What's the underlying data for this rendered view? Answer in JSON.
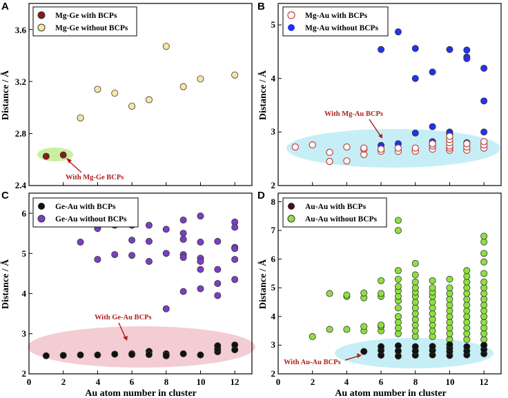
{
  "figure": {
    "colors": {
      "dark_red": "#8b1a1a",
      "light_yellow": "#f7e7a0",
      "blue": "#2233ee",
      "purple": "#7a3fc4",
      "black": "#111111",
      "light_green": "#8ee040",
      "annotation_red": "#b02020",
      "ellipse_green": "#c8f0a0",
      "ellipse_cyan": "#c6eef6",
      "ellipse_pink": "#f3cdd3"
    }
  },
  "chart_data": [
    {
      "panel": "A",
      "type": "scatter",
      "xlabel": "",
      "ylabel": "Distance / Å",
      "xlim": [
        0,
        13
      ],
      "ylim": [
        2.4,
        3.8
      ],
      "yticks": [
        "2.4",
        "2.8",
        "3.2",
        "3.6"
      ],
      "legend": "top-left",
      "series": [
        {
          "name": "Mg-Ge  with BCPs",
          "style": "filled",
          "color": "#8b1a1a",
          "points": [
            [
              1,
              2.625
            ],
            [
              2,
              2.635
            ]
          ]
        },
        {
          "name": "Mg-Ge without BCPs",
          "style": "filled",
          "color": "#f7e7a0",
          "points": [
            [
              3,
              2.92
            ],
            [
              4,
              3.14
            ],
            [
              5,
              3.11
            ],
            [
              6,
              3.01
            ],
            [
              7,
              3.06
            ],
            [
              8,
              3.47
            ],
            [
              9,
              3.16
            ],
            [
              10,
              3.22
            ],
            [
              12,
              3.25
            ]
          ]
        }
      ],
      "annotation": {
        "text": "With Mg-Ge BCPs",
        "x": 3.5,
        "y": 2.48
      }
    },
    {
      "panel": "B",
      "type": "scatter",
      "xlabel": "",
      "ylabel": "Distance / Å",
      "xlim": [
        0,
        13
      ],
      "ylim": [
        2,
        5.4
      ],
      "yticks": [
        "2",
        "3",
        "4",
        "5"
      ],
      "legend": "top-left",
      "series": [
        {
          "name": "Mg-Au  with BCPs",
          "style": "hollow",
          "color": "#c04040",
          "points": [
            [
              1,
              2.72
            ],
            [
              2,
              2.76
            ],
            [
              3,
              2.45
            ],
            [
              3,
              2.62
            ],
            [
              4,
              2.46
            ],
            [
              4,
              2.72
            ],
            [
              5,
              2.58
            ],
            [
              5,
              2.68
            ],
            [
              5,
              2.7
            ],
            [
              6,
              2.64
            ],
            [
              6,
              2.68
            ],
            [
              7,
              2.64
            ],
            [
              7,
              2.7
            ],
            [
              8,
              2.64
            ],
            [
              8,
              2.7
            ],
            [
              9,
              2.68
            ],
            [
              9,
              2.74
            ],
            [
              9,
              2.78
            ],
            [
              10,
              2.66
            ],
            [
              10,
              2.7
            ],
            [
              10,
              2.74
            ],
            [
              10,
              2.8
            ],
            [
              10,
              2.86
            ],
            [
              10,
              2.92
            ],
            [
              11,
              2.66
            ],
            [
              11,
              2.72
            ],
            [
              11,
              2.78
            ],
            [
              12,
              2.7
            ],
            [
              12,
              2.76
            ],
            [
              12,
              2.82
            ]
          ]
        },
        {
          "name": "Mg-Au without BCPs",
          "style": "filled",
          "color": "#2233ee",
          "points": [
            [
              6,
              4.54
            ],
            [
              6,
              2.75
            ],
            [
              7,
              4.87
            ],
            [
              7,
              2.78
            ],
            [
              8,
              4.56
            ],
            [
              8,
              4.0
            ],
            [
              8,
              2.98
            ],
            [
              9,
              4.12
            ],
            [
              9,
              3.1
            ],
            [
              9,
              2.82
            ],
            [
              10,
              4.54
            ],
            [
              10,
              3.0
            ],
            [
              10,
              2.96
            ],
            [
              11,
              4.53
            ],
            [
              11,
              4.4
            ],
            [
              11,
              4.37
            ],
            [
              11,
              2.8
            ],
            [
              12,
              4.19
            ],
            [
              12,
              3.58
            ],
            [
              12,
              3.0
            ],
            [
              12,
              2.77
            ]
          ]
        }
      ],
      "annotation": {
        "text": "With Mg-Au BCPs",
        "x": 7.5,
        "y": 3.45
      }
    },
    {
      "panel": "C",
      "type": "scatter",
      "xlabel": "Au atom number in cluster",
      "ylabel": "Distance / Å",
      "xlim": [
        0,
        13
      ],
      "ylim": [
        2,
        6.5
      ],
      "xticks": [
        "0",
        "2",
        "4",
        "6",
        "8",
        "10",
        "12"
      ],
      "yticks": [
        "2",
        "3",
        "4",
        "5",
        "6"
      ],
      "legend": "top-left",
      "series": [
        {
          "name": "Ge-Au  with BCPs",
          "style": "filled",
          "color": "#111111",
          "points": [
            [
              1,
              2.45
            ],
            [
              2,
              2.46
            ],
            [
              3,
              2.47
            ],
            [
              4,
              2.47
            ],
            [
              5,
              2.49
            ],
            [
              6,
              2.5
            ],
            [
              6,
              2.48
            ],
            [
              7,
              2.56
            ],
            [
              7,
              2.48
            ],
            [
              8,
              2.5
            ],
            [
              8,
              2.45
            ],
            [
              9,
              2.5
            ],
            [
              10,
              2.47
            ],
            [
              11,
              2.55
            ],
            [
              11,
              2.62
            ],
            [
              11,
              2.7
            ],
            [
              12,
              2.6
            ],
            [
              12,
              2.72
            ]
          ]
        },
        {
          "name": "Ge-Au without BCPs",
          "style": "filled",
          "color": "#7a3fc4",
          "points": [
            [
              3,
              5.28
            ],
            [
              4,
              5.62
            ],
            [
              4,
              4.85
            ],
            [
              5,
              5.7
            ],
            [
              5,
              4.97
            ],
            [
              6,
              5.7
            ],
            [
              6,
              5.33
            ],
            [
              6,
              4.95
            ],
            [
              7,
              5.7
            ],
            [
              7,
              5.3
            ],
            [
              7,
              4.8
            ],
            [
              8,
              5.6
            ],
            [
              8,
              5.0
            ],
            [
              8,
              3.62
            ],
            [
              9,
              5.83
            ],
            [
              9,
              5.5
            ],
            [
              9,
              5.35
            ],
            [
              9,
              4.97
            ],
            [
              9,
              4.9
            ],
            [
              9,
              4.05
            ],
            [
              10,
              5.93
            ],
            [
              10,
              5.28
            ],
            [
              10,
              4.88
            ],
            [
              10,
              4.8
            ],
            [
              10,
              4.6
            ],
            [
              10,
              4.12
            ],
            [
              11,
              5.3
            ],
            [
              11,
              4.6
            ],
            [
              11,
              4.25
            ],
            [
              11,
              3.95
            ],
            [
              12,
              5.78
            ],
            [
              12,
              5.65
            ],
            [
              12,
              5.15
            ],
            [
              12,
              5.12
            ],
            [
              12,
              4.85
            ],
            [
              12,
              4.35
            ]
          ]
        }
      ],
      "annotation": {
        "text": "With Ge-Au BCPs",
        "x": 5,
        "y": 3.35
      }
    },
    {
      "panel": "D",
      "type": "scatter",
      "xlabel": "Au atom number in cluster",
      "ylabel": "Distance / Å",
      "xlim": [
        0,
        13
      ],
      "ylim": [
        2,
        8.3
      ],
      "xticks": [
        "0",
        "2",
        "4",
        "6",
        "8",
        "10",
        "12"
      ],
      "yticks": [
        "2",
        "3",
        "4",
        "5",
        "6",
        "7",
        "8"
      ],
      "legend": "top-left",
      "series": [
        {
          "name": "Au-Au  with BCPs",
          "style": "filled",
          "color": "#111111",
          "points": [
            [
              5,
              2.78
            ],
            [
              6,
              2.65
            ],
            [
              6,
              2.82
            ],
            [
              6,
              2.95
            ],
            [
              7,
              2.62
            ],
            [
              7,
              2.8
            ],
            [
              7,
              2.98
            ],
            [
              8,
              2.65
            ],
            [
              8,
              2.8
            ],
            [
              8,
              2.95
            ],
            [
              9,
              2.66
            ],
            [
              9,
              2.82
            ],
            [
              9,
              2.96
            ],
            [
              10,
              2.64
            ],
            [
              10,
              2.78
            ],
            [
              10,
              2.9
            ],
            [
              10,
              3.02
            ],
            [
              11,
              2.66
            ],
            [
              11,
              2.8
            ],
            [
              11,
              2.95
            ],
            [
              12,
              2.7
            ],
            [
              12,
              2.85
            ],
            [
              12,
              3.0
            ]
          ]
        },
        {
          "name": "Au-Au without BCPs",
          "style": "filled",
          "color": "#8ee040",
          "points": [
            [
              2,
              3.3
            ],
            [
              3,
              3.55
            ],
            [
              3,
              4.8
            ],
            [
              4,
              3.55
            ],
            [
              4,
              4.7
            ],
            [
              4,
              4.75
            ],
            [
              5,
              3.5
            ],
            [
              5,
              3.65
            ],
            [
              5,
              4.65
            ],
            [
              5,
              4.82
            ],
            [
              6,
              3.5
            ],
            [
              6,
              3.65
            ],
            [
              6,
              3.7
            ],
            [
              6,
              4.7
            ],
            [
              6,
              4.8
            ],
            [
              6,
              5.25
            ],
            [
              7,
              3.4
            ],
            [
              7,
              3.6
            ],
            [
              7,
              3.8
            ],
            [
              7,
              4.0
            ],
            [
              7,
              4.3
            ],
            [
              7,
              4.55
            ],
            [
              7,
              4.7
            ],
            [
              7,
              4.9
            ],
            [
              7,
              5.05
            ],
            [
              7,
              5.3
            ],
            [
              7,
              5.6
            ],
            [
              7,
              7.0
            ],
            [
              7,
              7.35
            ],
            [
              8,
              3.3
            ],
            [
              8,
              3.5
            ],
            [
              8,
              3.7
            ],
            [
              8,
              3.9
            ],
            [
              8,
              4.1
            ],
            [
              8,
              4.3
            ],
            [
              8,
              4.5
            ],
            [
              8,
              4.7
            ],
            [
              8,
              4.85
            ],
            [
              8,
              5.0
            ],
            [
              8,
              5.2
            ],
            [
              8,
              5.45
            ],
            [
              8,
              5.85
            ],
            [
              9,
              3.3
            ],
            [
              9,
              3.5
            ],
            [
              9,
              3.7
            ],
            [
              9,
              3.9
            ],
            [
              9,
              4.1
            ],
            [
              9,
              4.3
            ],
            [
              9,
              4.5
            ],
            [
              9,
              4.7
            ],
            [
              9,
              4.85
            ],
            [
              9,
              5.0
            ],
            [
              9,
              5.25
            ],
            [
              10,
              3.2
            ],
            [
              10,
              3.4
            ],
            [
              10,
              3.6
            ],
            [
              10,
              3.8
            ],
            [
              10,
              4.0
            ],
            [
              10,
              4.2
            ],
            [
              10,
              4.4
            ],
            [
              10,
              4.6
            ],
            [
              10,
              4.8
            ],
            [
              10,
              5.0
            ],
            [
              10,
              5.3
            ],
            [
              11,
              3.2
            ],
            [
              11,
              3.4
            ],
            [
              11,
              3.6
            ],
            [
              11,
              3.8
            ],
            [
              11,
              4.0
            ],
            [
              11,
              4.2
            ],
            [
              11,
              4.4
            ],
            [
              11,
              4.6
            ],
            [
              11,
              4.8
            ],
            [
              11,
              5.0
            ],
            [
              11,
              5.2
            ],
            [
              11,
              5.4
            ],
            [
              11,
              5.6
            ],
            [
              12,
              3.0
            ],
            [
              12,
              3.2
            ],
            [
              12,
              3.4
            ],
            [
              12,
              3.6
            ],
            [
              12,
              3.8
            ],
            [
              12,
              4.0
            ],
            [
              12,
              4.2
            ],
            [
              12,
              4.4
            ],
            [
              12,
              4.6
            ],
            [
              12,
              4.8
            ],
            [
              12,
              5.0
            ],
            [
              12,
              5.2
            ],
            [
              12,
              5.5
            ],
            [
              12,
              5.9
            ],
            [
              12,
              6.2
            ],
            [
              12,
              6.6
            ],
            [
              12,
              6.8
            ]
          ]
        }
      ],
      "annotation": {
        "text": "With Au-Au BCPs",
        "x": 1.7,
        "y": 2.5
      }
    }
  ]
}
